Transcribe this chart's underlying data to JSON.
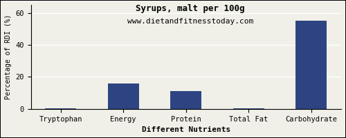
{
  "title": "Syrups, malt per 100g",
  "subtitle": "www.dietandfitnesstoday.com",
  "xlabel": "Different Nutrients",
  "ylabel": "Percentage of RDI (%)",
  "categories": [
    "Tryptophan",
    "Energy",
    "Protein",
    "Total Fat",
    "Carbohydrate"
  ],
  "values": [
    0.5,
    16,
    11,
    0.5,
    55
  ],
  "bar_color": "#2e4482",
  "ylim": [
    0,
    65
  ],
  "yticks": [
    0,
    20,
    40,
    60
  ],
  "background_color": "#f0f0e8",
  "title_fontsize": 9,
  "subtitle_fontsize": 8,
  "xlabel_fontsize": 8,
  "ylabel_fontsize": 7,
  "tick_fontsize": 7.5
}
